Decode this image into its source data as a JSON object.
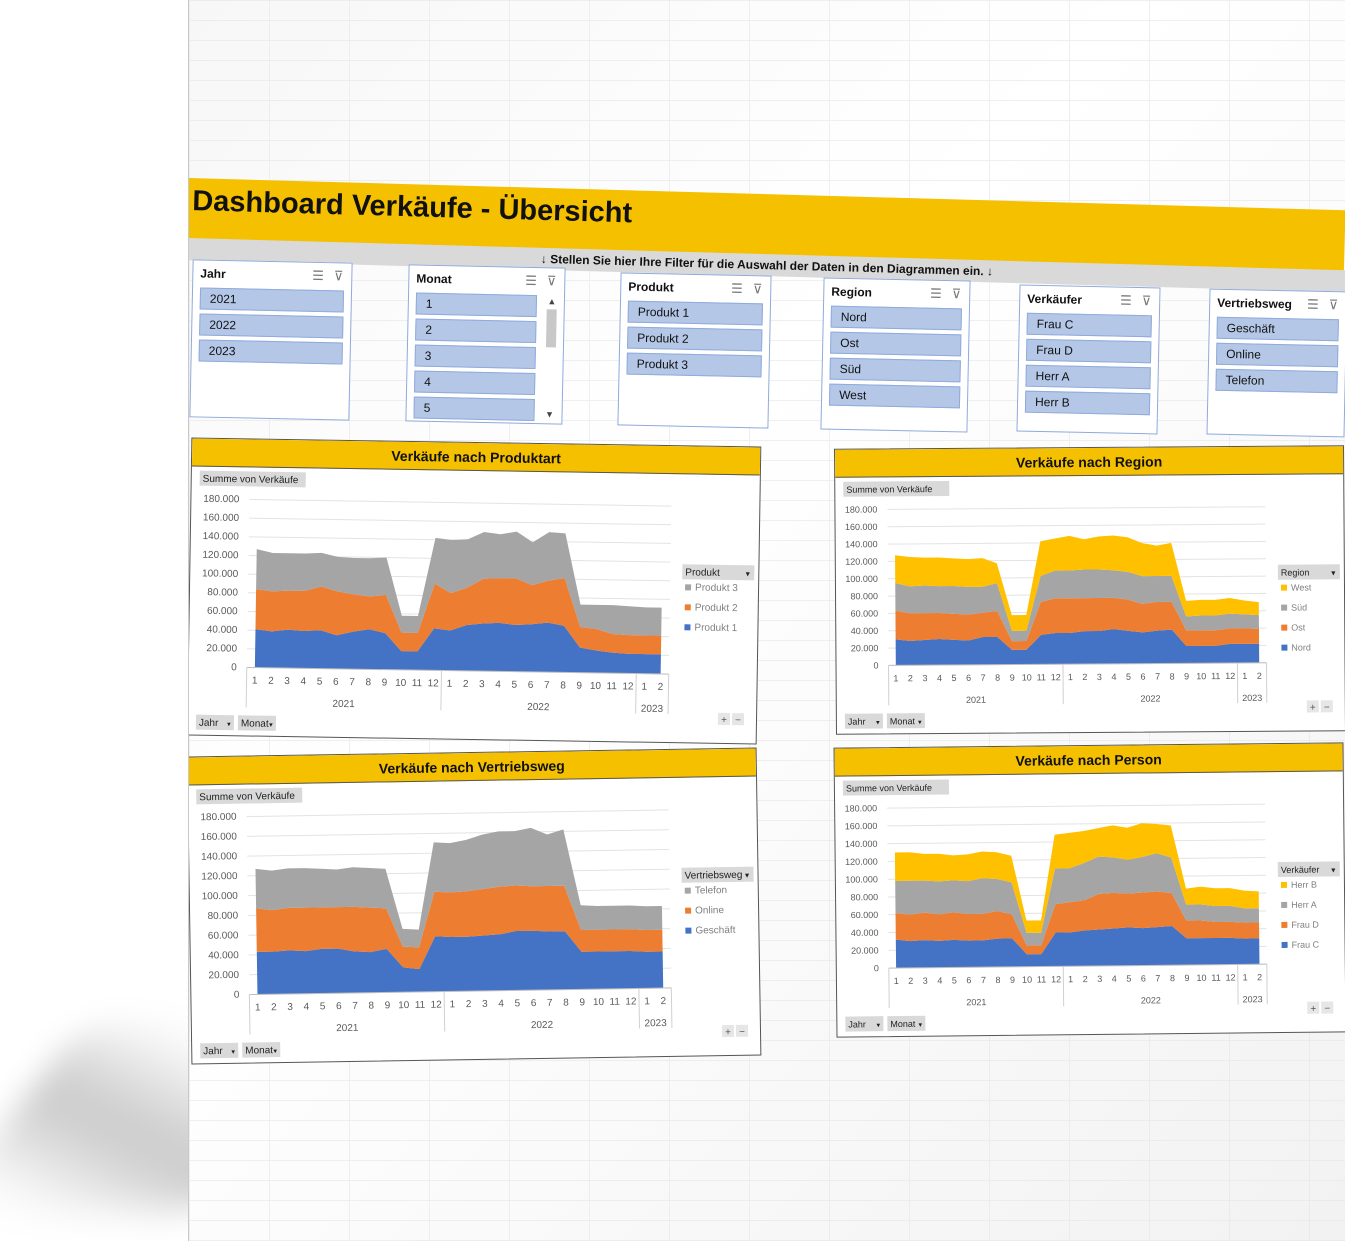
{
  "colors": {
    "accent": "#f5c000",
    "blue": "#4472c4",
    "orange": "#ed7d31",
    "gray": "#a5a5a5",
    "gold": "#ffc000"
  },
  "dashboard": {
    "title": "Dashboard Verkäufe - Übersicht",
    "filter_hint": "↓  Stellen Sie hier Ihre Filter für die Auswahl der Daten in den Diagrammen ein.  ↓"
  },
  "slicers": [
    {
      "header": "Jahr",
      "items": [
        "2021",
        "2022",
        "2023"
      ]
    },
    {
      "header": "Monat",
      "items": [
        "1",
        "2",
        "3",
        "4",
        "5"
      ]
    },
    {
      "header": "Produkt",
      "items": [
        "Produkt 1",
        "Produkt 2",
        "Produkt 3"
      ]
    },
    {
      "header": "Region",
      "items": [
        "Nord",
        "Ost",
        "Süd",
        "West"
      ]
    },
    {
      "header": "Verkäufer",
      "items": [
        "Frau C",
        "Frau D",
        "Herr A",
        "Herr B"
      ]
    },
    {
      "header": "Vertriebsweg",
      "items": [
        "Geschäft",
        "Online",
        "Telefon"
      ]
    }
  ],
  "field_buttons": {
    "value_field": "Summe von Verkäufe",
    "axis1": "Jahr",
    "axis2": "Monat",
    "plus": "+",
    "minus": "−"
  },
  "chart_data": [
    {
      "type": "area",
      "title": "Verkäufe nach Produktart",
      "legend_title": "Produkt",
      "legend_position": "right",
      "ylim": [
        0,
        180000
      ],
      "yticks": [
        "0",
        "20.000",
        "40.000",
        "60.000",
        "80.000",
        "100.000",
        "120.000",
        "140.000",
        "160.000",
        "180.000"
      ],
      "x": [
        "1",
        "2",
        "3",
        "4",
        "5",
        "6",
        "7",
        "8",
        "9",
        "10",
        "11",
        "12",
        "1",
        "2",
        "3",
        "4",
        "5",
        "6",
        "7",
        "8",
        "9",
        "10",
        "11",
        "12",
        "1",
        "2"
      ],
      "year_groups": [
        {
          "label": "2021",
          "count": 12
        },
        {
          "label": "2022",
          "count": 12
        },
        {
          "label": "2023",
          "count": 2
        }
      ],
      "series": [
        {
          "name": "Produkt 1",
          "color": "#4472c4",
          "values": [
            41000,
            39000,
            41000,
            40000,
            41000,
            36000,
            40000,
            43000,
            39000,
            20000,
            20000,
            45000,
            43000,
            49000,
            51000,
            52000,
            50000,
            51000,
            53000,
            50000,
            27000,
            24000,
            22000,
            21000,
            21000,
            21000
          ]
        },
        {
          "name": "Produkt 2",
          "color": "#ed7d31",
          "values": [
            43000,
            43000,
            42000,
            43000,
            47000,
            47000,
            40000,
            35000,
            41000,
            20000,
            20000,
            48000,
            40000,
            40000,
            48000,
            48000,
            50000,
            42000,
            45000,
            51000,
            22000,
            23000,
            20000,
            20000,
            20000,
            20000
          ]
        },
        {
          "name": "Produkt 3",
          "color": "#a5a5a5",
          "values": [
            43000,
            41000,
            40000,
            40000,
            36000,
            37000,
            39000,
            41000,
            40000,
            18000,
            18000,
            49000,
            57000,
            52000,
            50000,
            47000,
            50000,
            46000,
            52000,
            48000,
            24000,
            26000,
            31000,
            31000,
            30000,
            30000
          ]
        }
      ]
    },
    {
      "type": "area",
      "title": "Verkäufe nach Region",
      "legend_title": "Region",
      "legend_position": "right",
      "ylim": [
        0,
        180000
      ],
      "yticks": [
        "0",
        "20.000",
        "40.000",
        "60.000",
        "80.000",
        "100.000",
        "120.000",
        "140.000",
        "160.000",
        "180.000"
      ],
      "x": [
        "1",
        "2",
        "3",
        "4",
        "5",
        "6",
        "7",
        "8",
        "9",
        "10",
        "11",
        "12",
        "1",
        "2",
        "3",
        "4",
        "5",
        "6",
        "7",
        "8",
        "9",
        "10",
        "11",
        "12",
        "1",
        "2"
      ],
      "year_groups": [
        {
          "label": "2021",
          "count": 12
        },
        {
          "label": "2022",
          "count": 12
        },
        {
          "label": "2023",
          "count": 2
        }
      ],
      "series": [
        {
          "name": "Nord",
          "color": "#4472c4",
          "values": [
            30000,
            28000,
            29000,
            30000,
            29000,
            28000,
            32000,
            32000,
            17000,
            17000,
            34000,
            36000,
            36000,
            38000,
            38000,
            40000,
            38000,
            36000,
            38000,
            39000,
            20000,
            20000,
            20000,
            22000,
            22000,
            22000
          ]
        },
        {
          "name": "Ost",
          "color": "#ed7d31",
          "values": [
            33000,
            32000,
            31000,
            30000,
            30000,
            30000,
            28000,
            30000,
            10000,
            10000,
            38000,
            40000,
            40000,
            38000,
            38000,
            36000,
            36000,
            33000,
            33000,
            32000,
            18000,
            18000,
            18000,
            18000,
            18000,
            17000
          ]
        },
        {
          "name": "Süd",
          "color": "#a5a5a5",
          "values": [
            32000,
            31000,
            32000,
            31000,
            32000,
            32000,
            30000,
            32000,
            12000,
            12000,
            30000,
            32000,
            32000,
            33000,
            33000,
            32000,
            32000,
            32000,
            30000,
            30000,
            16000,
            17000,
            17000,
            17000,
            16000,
            16000
          ]
        },
        {
          "name": "West",
          "color": "#ffc000",
          "values": [
            32000,
            34000,
            32000,
            33000,
            32000,
            32000,
            33000,
            23000,
            18000,
            18000,
            40000,
            37000,
            40000,
            35000,
            38000,
            40000,
            40000,
            38000,
            35000,
            38000,
            18000,
            18000,
            18000,
            18000,
            16000,
            15000
          ]
        }
      ]
    },
    {
      "type": "area",
      "title": "Verkäufe nach Vertriebsweg",
      "legend_title": "Vertriebsweg",
      "legend_position": "right",
      "ylim": [
        0,
        180000
      ],
      "yticks": [
        "0",
        "20.000",
        "40.000",
        "60.000",
        "80.000",
        "100.000",
        "120.000",
        "140.000",
        "160.000",
        "180.000"
      ],
      "x": [
        "1",
        "2",
        "3",
        "4",
        "5",
        "6",
        "7",
        "8",
        "9",
        "10",
        "11",
        "12",
        "1",
        "2",
        "3",
        "4",
        "5",
        "6",
        "7",
        "8",
        "9",
        "10",
        "11",
        "12",
        "1",
        "2"
      ],
      "year_groups": [
        {
          "label": "2021",
          "count": 12
        },
        {
          "label": "2022",
          "count": 12
        },
        {
          "label": "2023",
          "count": 2
        }
      ],
      "series": [
        {
          "name": "Geschäft",
          "color": "#4472c4",
          "values": [
            43000,
            43000,
            44000,
            43000,
            45000,
            45000,
            42000,
            41000,
            44000,
            25000,
            23000,
            56000,
            55000,
            55000,
            56000,
            57000,
            60000,
            60000,
            59000,
            59000,
            38000,
            38000,
            38000,
            38000,
            37000,
            37000
          ]
        },
        {
          "name": "Online",
          "color": "#ed7d31",
          "values": [
            44000,
            42000,
            43000,
            44000,
            42000,
            42000,
            45000,
            45000,
            41000,
            21000,
            22000,
            45000,
            45000,
            46000,
            47000,
            48000,
            46000,
            45000,
            46000,
            46000,
            22000,
            22000,
            22000,
            22000,
            22000,
            22000
          ]
        },
        {
          "name": "Telefon",
          "color": "#a5a5a5",
          "values": [
            40000,
            40000,
            40000,
            40000,
            39000,
            38000,
            40000,
            40000,
            40000,
            18000,
            18000,
            50000,
            50000,
            52000,
            55000,
            56000,
            55000,
            59000,
            52000,
            57000,
            25000,
            24000,
            24000,
            24000,
            24000,
            24000
          ]
        }
      ]
    },
    {
      "type": "area",
      "title": "Verkäufe nach Person",
      "legend_title": "Verkäufer",
      "legend_position": "right",
      "ylim": [
        0,
        180000
      ],
      "yticks": [
        "0",
        "20.000",
        "40.000",
        "60.000",
        "80.000",
        "100.000",
        "120.000",
        "140.000",
        "160.000",
        "180.000"
      ],
      "x": [
        "1",
        "2",
        "3",
        "4",
        "5",
        "6",
        "7",
        "8",
        "9",
        "10",
        "11",
        "12",
        "1",
        "2",
        "3",
        "4",
        "5",
        "6",
        "7",
        "8",
        "9",
        "10",
        "11",
        "12",
        "1",
        "2"
      ],
      "year_groups": [
        {
          "label": "2021",
          "count": 12
        },
        {
          "label": "2022",
          "count": 12
        },
        {
          "label": "2023",
          "count": 2
        }
      ],
      "series": [
        {
          "name": "Frau C",
          "color": "#4472c4",
          "values": [
            32000,
            30000,
            31000,
            30000,
            31000,
            30000,
            30000,
            32000,
            32000,
            14000,
            14000,
            38000,
            38000,
            40000,
            41000,
            42000,
            43000,
            42000,
            43000,
            44000,
            30000,
            30000,
            30000,
            30000,
            29000,
            29000
          ]
        },
        {
          "name": "Frau D",
          "color": "#ed7d31",
          "values": [
            30000,
            30000,
            31000,
            30000,
            31000,
            30000,
            30000,
            31000,
            27000,
            10000,
            10000,
            32000,
            34000,
            34000,
            40000,
            40000,
            38000,
            40000,
            40000,
            37000,
            20000,
            20000,
            18000,
            18000,
            18000,
            18000
          ]
        },
        {
          "name": "Herr A",
          "color": "#a5a5a5",
          "values": [
            36000,
            38000,
            36000,
            37000,
            36000,
            37000,
            40000,
            36000,
            36000,
            14000,
            14000,
            40000,
            38000,
            42000,
            42000,
            40000,
            38000,
            40000,
            43000,
            40000,
            18000,
            18000,
            18000,
            18000,
            16000,
            16000
          ]
        },
        {
          "name": "Herr B",
          "color": "#ffc000",
          "values": [
            32000,
            32000,
            30000,
            31000,
            28000,
            30000,
            30000,
            30000,
            30000,
            14000,
            14000,
            38000,
            40000,
            36000,
            32000,
            36000,
            36000,
            38000,
            33000,
            36000,
            18000,
            20000,
            20000,
            20000,
            20000,
            19000
          ]
        }
      ]
    }
  ]
}
